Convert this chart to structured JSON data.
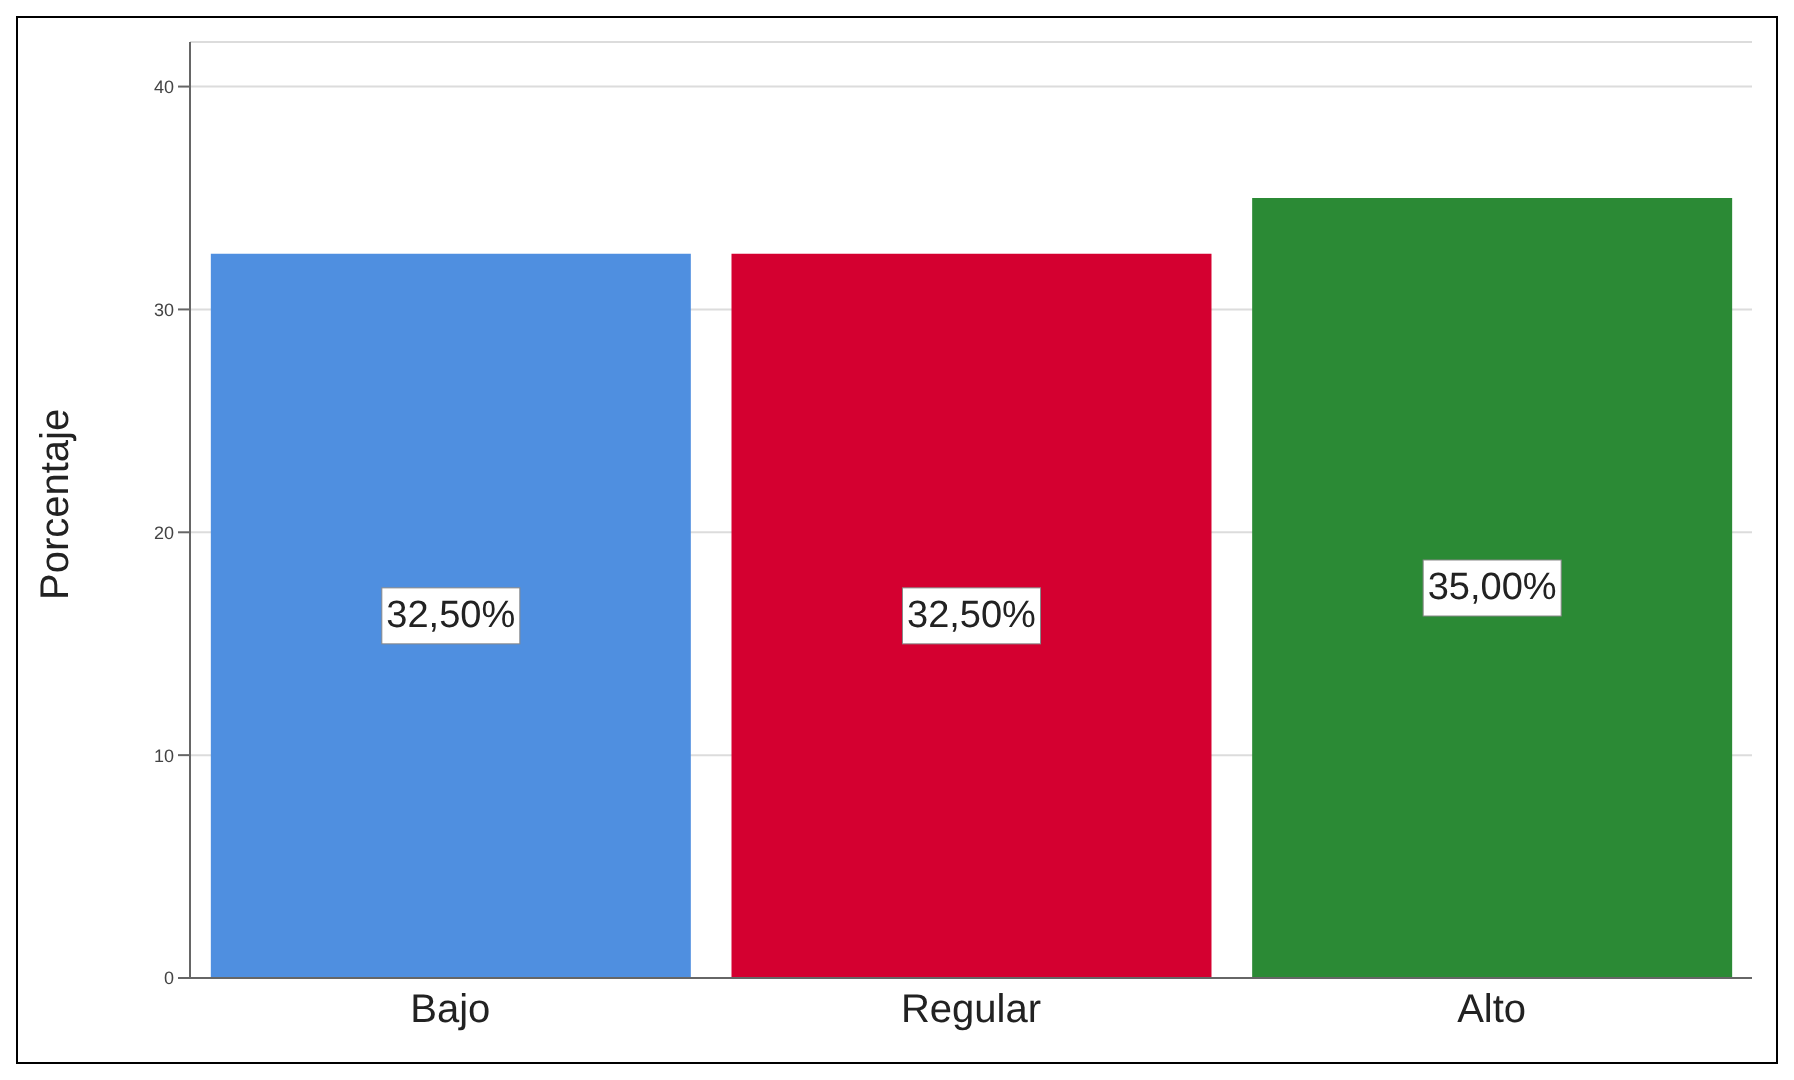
{
  "chart_data": {
    "type": "bar",
    "ylabel": "Porcentaje",
    "categories": [
      "Bajo",
      "Regular",
      "Alto"
    ],
    "values": [
      32.5,
      32.5,
      35
    ],
    "colors": [
      "#4f8fe0",
      "#d40030",
      "#2b8a35"
    ],
    "value_labels": [
      "32,50%",
      "32,50%",
      "35,00%"
    ],
    "ylim": [
      0,
      42
    ],
    "yticks": [
      0,
      10,
      20,
      30,
      40
    ],
    "grid": "y"
  }
}
